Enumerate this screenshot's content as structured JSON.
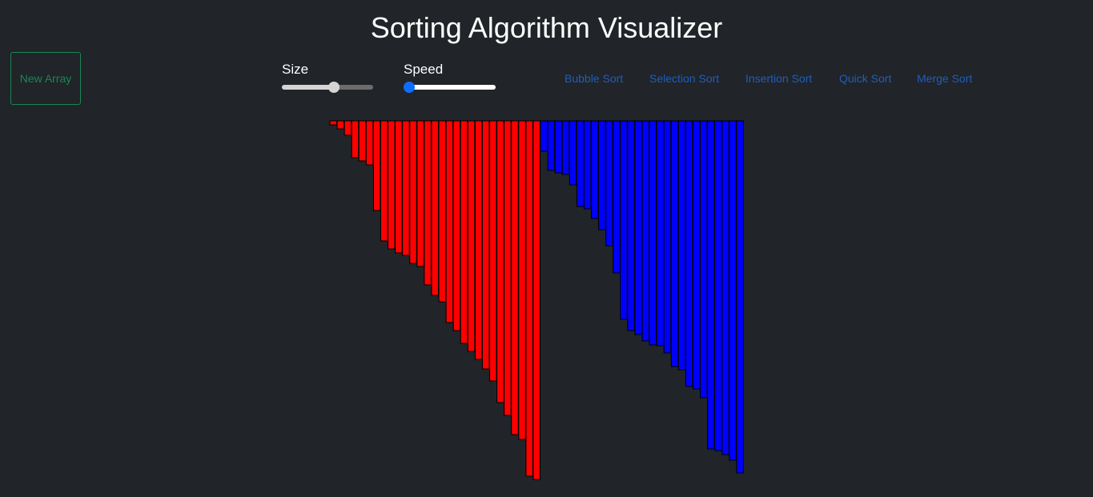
{
  "header": {
    "title": "Sorting Algorithm Visualizer"
  },
  "toolbar": {
    "new_array_label": "New Array",
    "size": {
      "label": "Size",
      "value_fraction": 0.58
    },
    "speed": {
      "label": "Speed",
      "value_fraction": 0.0
    },
    "algorithms": [
      {
        "label": "Bubble Sort"
      },
      {
        "label": "Selection Sort"
      },
      {
        "label": "Insertion Sort"
      },
      {
        "label": "Quick Sort"
      },
      {
        "label": "Merge Sort"
      }
    ]
  },
  "colors": {
    "background": "#212428",
    "sorted_color": "#ff0000",
    "unsorted_color": "#0000ff",
    "new_array_accent": "#198754",
    "link_color": "#1f5dbf"
  },
  "array": {
    "red": [
      5,
      10,
      18,
      46,
      50,
      55,
      112,
      150,
      160,
      165,
      168,
      178,
      182,
      205,
      218,
      226,
      252,
      262,
      278,
      288,
      298,
      310,
      325,
      352,
      368,
      392,
      398,
      444,
      448
    ],
    "blue": [
      38,
      62,
      65,
      67,
      80,
      107,
      110,
      122,
      136,
      156,
      190,
      248,
      262,
      267,
      275,
      280,
      281,
      290,
      307,
      311,
      332,
      335,
      346,
      410,
      412,
      417,
      424,
      440
    ]
  }
}
